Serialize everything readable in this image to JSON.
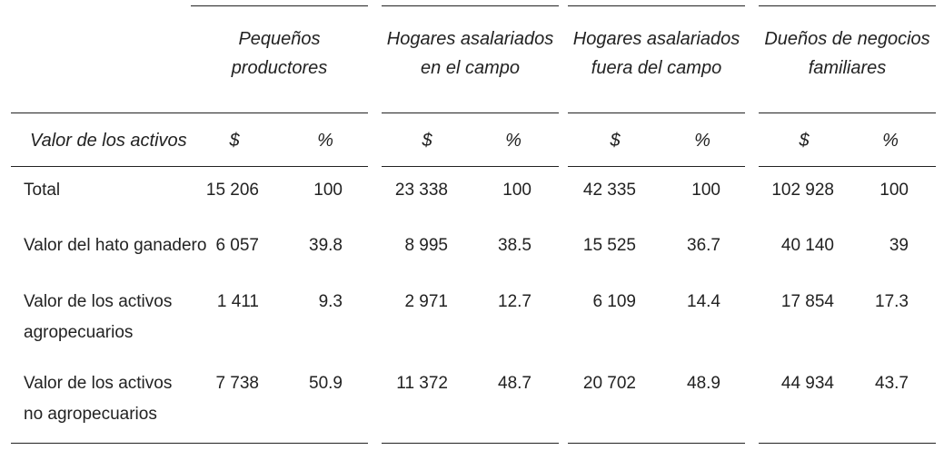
{
  "table": {
    "groups": [
      [
        "Pequeños",
        "productores"
      ],
      [
        "Hogares asalariados",
        "en el campo"
      ],
      [
        "Hogares asalariados",
        "fuera del campo"
      ],
      [
        "Dueños de negocios",
        "familiares"
      ]
    ],
    "subheader": {
      "label": "Valor de los activos",
      "units": [
        "$",
        "%"
      ]
    },
    "rows": [
      {
        "label": [
          "Total"
        ],
        "cells": [
          "15 206",
          "100",
          "23 338",
          "100",
          "42 335",
          "100",
          "102 928",
          "100"
        ]
      },
      {
        "label": [
          "Valor del hato ganadero"
        ],
        "cells": [
          "6 057",
          "39.8",
          "8 995",
          "38.5",
          "15 525",
          "36.7",
          "40 140",
          "39"
        ]
      },
      {
        "label": [
          "Valor de los activos",
          "agropecuarios"
        ],
        "cells": [
          "1 411",
          "9.3",
          "2 971",
          "12.7",
          "6 109",
          "14.4",
          "17 854",
          "17.3"
        ]
      },
      {
        "label": [
          "Valor de los activos",
          "no agropecuarios"
        ],
        "cells": [
          "7 738",
          "50.9",
          "11 372",
          "48.7",
          "20 702",
          "48.9",
          "44 934",
          "43.7"
        ]
      }
    ]
  }
}
